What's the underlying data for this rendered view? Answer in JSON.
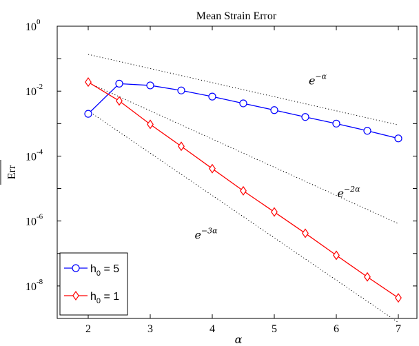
{
  "chart_data": {
    "type": "line",
    "title": "Mean Strain Error",
    "xlabel": "α",
    "ylabel": "Err",
    "xlim": [
      1.5,
      7.3
    ],
    "ylim": [
      1e-09,
      1
    ],
    "yscale": "log",
    "xticks": [
      "2",
      "3",
      "4",
      "5",
      "6",
      "7"
    ],
    "yticks": [
      {
        "base": "10",
        "exp": "0"
      },
      {
        "base": "10",
        "exp": "-2"
      },
      {
        "base": "10",
        "exp": "-4"
      },
      {
        "base": "10",
        "exp": "-6"
      },
      {
        "base": "10",
        "exp": "-8"
      }
    ],
    "legend_position": "bottom-left",
    "series": [
      {
        "name": "h_0 = 5",
        "legend_main": "h",
        "legend_sub": "0",
        "legend_rest": " = 5",
        "color": "#0000ff",
        "marker": "circle",
        "x": [
          2,
          2.5,
          3,
          3.5,
          4,
          4.5,
          5,
          5.5,
          6,
          6.5,
          7
        ],
        "y": [
          0.002,
          0.017,
          0.015,
          0.0105,
          0.0068,
          0.0042,
          0.0026,
          0.0016,
          0.001,
          0.0006,
          0.00035
        ]
      },
      {
        "name": "h_0 = 1",
        "legend_main": "h",
        "legend_sub": "0",
        "legend_rest": " = 1",
        "color": "#ff0000",
        "marker": "diamond",
        "x": [
          2,
          2.5,
          3,
          3.5,
          4,
          4.5,
          5,
          5.5,
          6,
          6.5,
          7
        ],
        "y": [
          0.019,
          0.005,
          0.00095,
          0.0002,
          4.1e-05,
          8.5e-06,
          1.9e-06,
          4.2e-07,
          8.8e-08,
          1.9e-08,
          4.3e-09
        ]
      }
    ],
    "reference_lines": [
      {
        "label_base": "e",
        "label_exp": "−α",
        "color": "#000000",
        "style": "dotted",
        "x": [
          2,
          7
        ],
        "y": [
          0.135,
          0.00091
        ]
      },
      {
        "label_base": "e",
        "label_exp": "−2α",
        "color": "#000000",
        "style": "dotted",
        "x": [
          2,
          7
        ],
        "y": [
          0.0183,
          8.3e-07
        ]
      },
      {
        "label_base": "e",
        "label_exp": "−3α",
        "color": "#000000",
        "style": "dotted",
        "x": [
          2,
          7
        ],
        "y": [
          0.00248,
          7.5e-10
        ]
      }
    ]
  }
}
